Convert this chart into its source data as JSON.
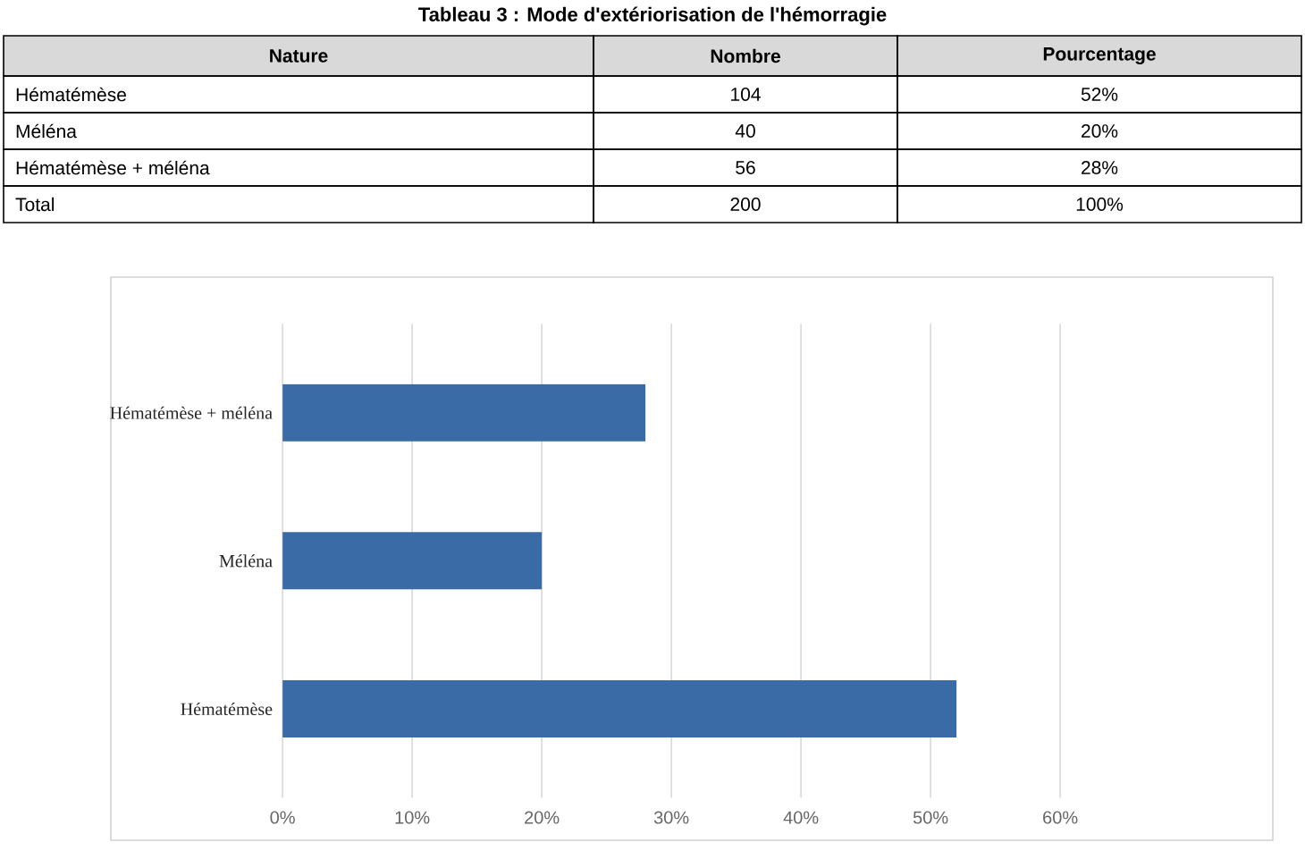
{
  "chart_data": [
    {
      "type": "other",
      "title": "Tableau 3 : Mode d'extériorisation de l'hémorragie",
      "annotations": [
        "Nature",
        "Nombre",
        "Pourcentage",
        "Hématémèse",
        "104",
        "52%",
        "Méléna",
        "40",
        "20%",
        "Hématémèse + méléna",
        "56",
        "28%",
        "Total",
        "200",
        "100%"
      ]
    },
    {
      "type": "bar",
      "orientation": "horizontal",
      "categories": [
        "Hématémèse + méléna",
        "Méléna",
        "Hématémèse"
      ],
      "values": [
        28,
        20,
        52
      ],
      "color": "#3b6ba6",
      "xlim": [
        0,
        60
      ],
      "xticks": [
        {
          "value": 0,
          "label": "0%"
        },
        {
          "value": 10,
          "label": "10%"
        },
        {
          "value": 20,
          "label": "20%"
        },
        {
          "value": 30,
          "label": "30%"
        },
        {
          "value": 40,
          "label": "40%"
        },
        {
          "value": 50,
          "label": "50%"
        },
        {
          "value": 60,
          "label": "60%"
        }
      ],
      "grid": "x"
    }
  ]
}
